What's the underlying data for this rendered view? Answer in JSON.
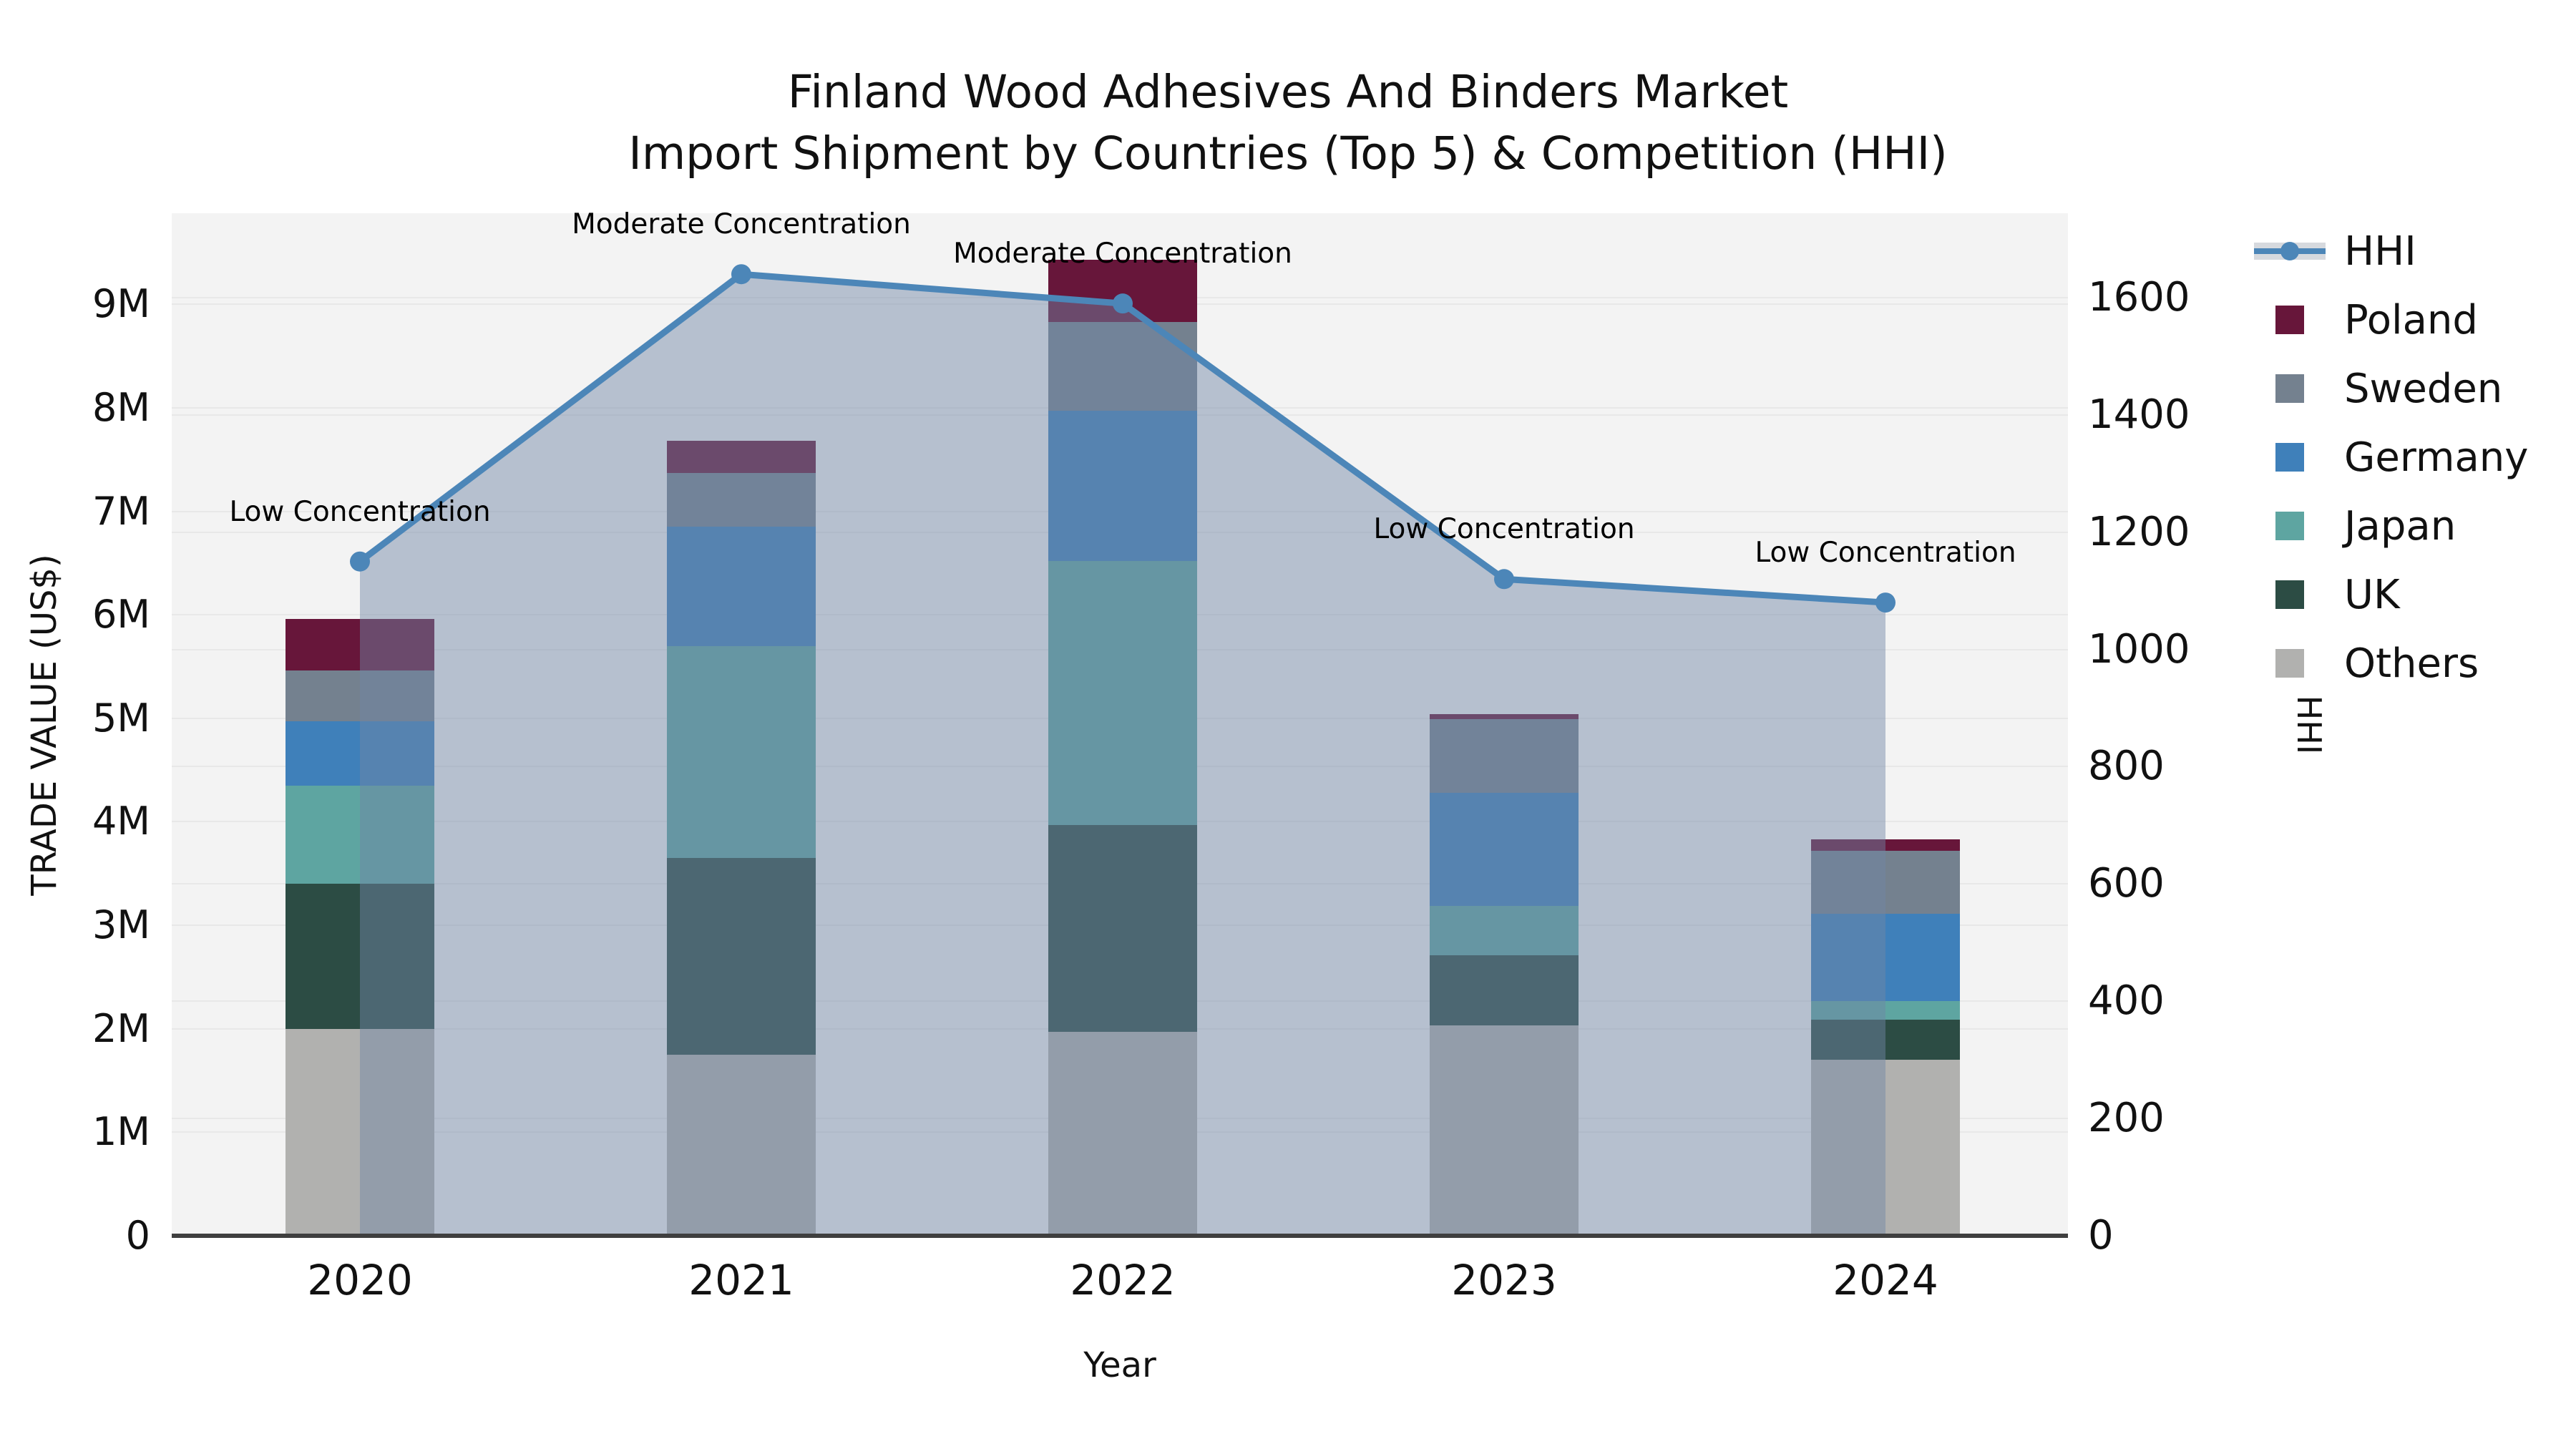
{
  "title": {
    "line1": "Finland Wood Adhesives And Binders Market",
    "line2": "Import Shipment by Countries (Top 5) & Competition (HHI)"
  },
  "axes": {
    "x_label": "Year",
    "y_left_label": "TRADE VALUE (US$)",
    "y_right_label": "HHI",
    "y_left_ticks": [
      "0",
      "1M",
      "2M",
      "3M",
      "4M",
      "5M",
      "6M",
      "7M",
      "8M",
      "9M"
    ],
    "y_right_ticks": [
      "0",
      "200",
      "400",
      "600",
      "800",
      "1000",
      "1200",
      "1400",
      "1600"
    ]
  },
  "legend": {
    "items": [
      {
        "label": "HHI",
        "type": "line",
        "color": "#4c86b8"
      },
      {
        "label": "Poland",
        "type": "swatch",
        "color": "#67163a"
      },
      {
        "label": "Sweden",
        "type": "swatch",
        "color": "#74818f"
      },
      {
        "label": "Germany",
        "type": "swatch",
        "color": "#3f80ba"
      },
      {
        "label": "Japan",
        "type": "swatch",
        "color": "#5ea5a1"
      },
      {
        "label": "UK",
        "type": "swatch",
        "color": "#2c4c44"
      },
      {
        "label": "Others",
        "type": "swatch",
        "color": "#b1b1af"
      }
    ]
  },
  "chart_data": {
    "type": "bar+line",
    "categories": [
      "2020",
      "2021",
      "2022",
      "2023",
      "2024"
    ],
    "bar_unit": "M US$ (trade value, millions)",
    "stack_order_bottom_to_top": [
      "Others",
      "UK",
      "Japan",
      "Germany",
      "Sweden",
      "Poland"
    ],
    "series": [
      {
        "name": "Poland",
        "color": "#67163a",
        "values": [
          0.5,
          0.31,
          0.6,
          0.05,
          0.11
        ]
      },
      {
        "name": "Sweden",
        "color": "#74818f",
        "values": [
          0.49,
          0.52,
          0.86,
          0.71,
          0.61
        ]
      },
      {
        "name": "Germany",
        "color": "#3f80ba",
        "values": [
          0.62,
          1.15,
          1.45,
          1.09,
          0.84
        ]
      },
      {
        "name": "Japan",
        "color": "#5ea5a1",
        "values": [
          0.95,
          2.05,
          2.55,
          0.48,
          0.18
        ]
      },
      {
        "name": "UK",
        "color": "#2c4c44",
        "values": [
          1.4,
          1.9,
          2.0,
          0.68,
          0.39
        ]
      },
      {
        "name": "Others",
        "color": "#b1b1af",
        "values": [
          2.0,
          1.75,
          1.97,
          2.03,
          1.7
        ]
      }
    ],
    "bar_totals": [
      5.96,
      7.68,
      9.43,
      5.04,
      3.83
    ],
    "line_series": {
      "name": "HHI",
      "color": "#4c86b8",
      "area_fill": "rgba(113,134,166,0.47)",
      "values": [
        1150,
        1640,
        1590,
        1120,
        1080
      ]
    },
    "annotations": [
      {
        "x": "2020",
        "text": "Low Concentration"
      },
      {
        "x": "2021",
        "text": "Moderate Concentration"
      },
      {
        "x": "2022",
        "text": "Moderate Concentration"
      },
      {
        "x": "2023",
        "text": "Low Concentration"
      },
      {
        "x": "2024",
        "text": "Low Concentration"
      }
    ],
    "ylim_left": [
      0,
      9.88
    ],
    "ylim_right": [
      0,
      1744
    ],
    "grid": true,
    "legend_position": "outside upper right"
  }
}
